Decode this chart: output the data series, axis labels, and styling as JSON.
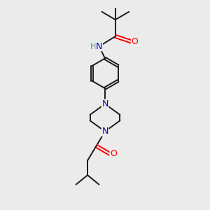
{
  "background_color": "#ebebeb",
  "bond_color": "#1a1a1a",
  "atom_colors": {
    "N": "#0000cc",
    "O": "#ff0000",
    "H": "#5a9090",
    "C": "#1a1a1a"
  },
  "figsize": [
    3.0,
    3.0
  ],
  "dpi": 100
}
